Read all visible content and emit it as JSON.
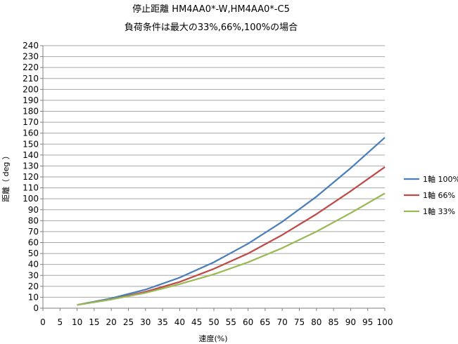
{
  "chart_data": {
    "type": "line",
    "title": "停止距離 HM4AA0*-W,HM4AA0*-C5",
    "subtitle": "負荷条件は最大の33%,66%,100%の場合",
    "xlabel": "速度(%)",
    "ylabel": "距離（ deg ）",
    "xlim": [
      0,
      100
    ],
    "ylim": [
      0,
      240
    ],
    "x_ticks": [
      0,
      5,
      10,
      15,
      20,
      25,
      30,
      35,
      40,
      45,
      50,
      55,
      60,
      65,
      70,
      75,
      80,
      85,
      90,
      95,
      100
    ],
    "y_ticks": [
      0,
      10,
      20,
      30,
      40,
      50,
      60,
      70,
      80,
      90,
      100,
      110,
      120,
      130,
      140,
      150,
      160,
      170,
      180,
      190,
      200,
      210,
      220,
      230,
      240
    ],
    "grid": true,
    "legend_position": "right",
    "x": [
      10,
      20,
      30,
      40,
      50,
      60,
      70,
      80,
      90,
      100
    ],
    "series": [
      {
        "name": "1軸 100%",
        "color": "#4a7ebb",
        "values": [
          3,
          9,
          17,
          28,
          42,
          59,
          79,
          102,
          128,
          156
        ]
      },
      {
        "name": "1軸 66%",
        "color": "#be4b48",
        "values": [
          3,
          8,
          15,
          24,
          36,
          50,
          67,
          86,
          107,
          129
        ]
      },
      {
        "name": "1軸 33%",
        "color": "#98b954",
        "values": [
          3,
          8,
          14,
          22,
          31,
          42,
          55,
          70,
          87,
          105
        ]
      }
    ]
  }
}
